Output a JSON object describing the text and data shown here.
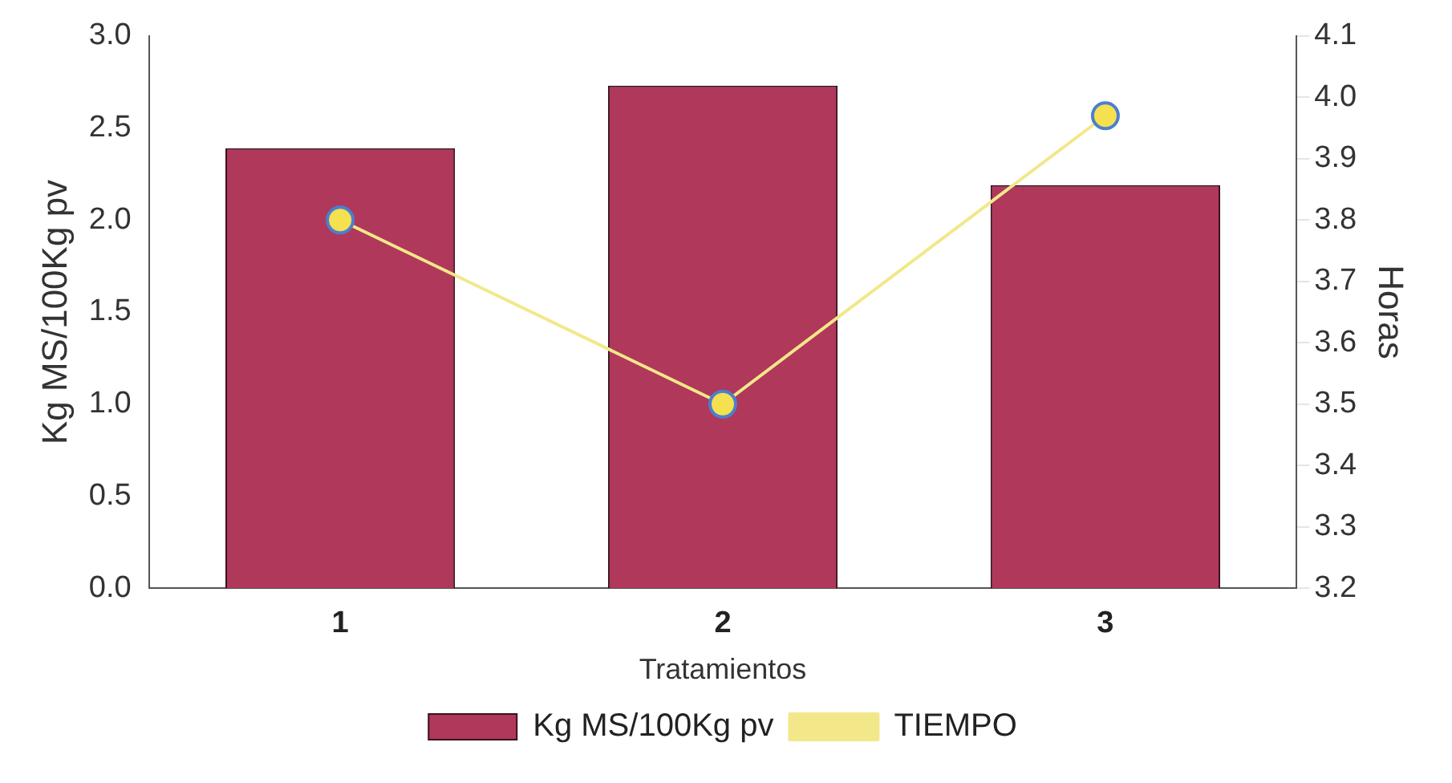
{
  "chart_data": {
    "type": "bar",
    "xlabel": "Tratamientos",
    "ylabel": "Kg MS/100Kg pv",
    "y2label": "Horas",
    "categories": [
      "1",
      "2",
      "3"
    ],
    "series": [
      {
        "name": "Kg MS/100Kg pv",
        "color": "#b0385a",
        "values": [
          2.39,
          2.73,
          2.19
        ]
      },
      {
        "name": "TIEMPO",
        "type": "line",
        "axis": "y2",
        "color": "#f2e88a",
        "values": [
          3.8,
          3.5,
          3.97
        ]
      }
    ],
    "ylim": [
      0,
      3
    ],
    "yticks": [
      {
        "value": 0,
        "label": "0.0"
      },
      0.5,
      {
        "value": 1,
        "label": "1.0"
      },
      1.5,
      {
        "value": 2,
        "label": "2.0"
      },
      2.5,
      {
        "value": 3,
        "label": "3.0"
      }
    ],
    "y2lim": [
      3.2,
      4.1
    ],
    "y2ticks": [
      3.2,
      3.3,
      3.4,
      3.5,
      3.6,
      3.7,
      3.8,
      3.9,
      {
        "value": 4,
        "label": "4.0"
      },
      4.1
    ],
    "marker": "circle",
    "grid": false,
    "legend": "bottom"
  }
}
